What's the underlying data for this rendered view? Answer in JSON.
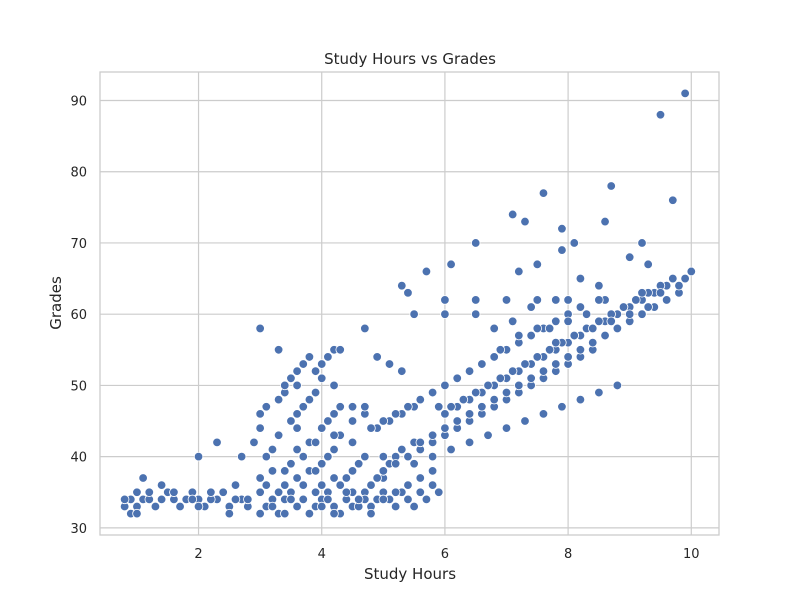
{
  "chart_data": {
    "type": "scatter",
    "title": "Study Hours vs Grades",
    "xlabel": "Study Hours",
    "ylabel": "Grades",
    "xlim": [
      0.4,
      10.45
    ],
    "ylim": [
      29,
      94
    ],
    "x_ticks": [
      2,
      4,
      6,
      8,
      10
    ],
    "y_ticks": [
      30,
      40,
      50,
      60,
      70,
      80,
      90
    ],
    "grid": true,
    "marker_color": "#4c72b0",
    "points": {
      "x": [
        0.8,
        0.9,
        1.0,
        1.1,
        1.2,
        1.3,
        1.4,
        1.5,
        1.6,
        1.7,
        1.8,
        1.9,
        2.0,
        2.1,
        2.2,
        2.3,
        2.4,
        2.5,
        2.6,
        2.7,
        0.9,
        1.0,
        1.2,
        1.4,
        1.6,
        1.8,
        2.0,
        2.2,
        2.4,
        2.6,
        2.8,
        1.1,
        1.4,
        2.0,
        2.3,
        2.6,
        0.8,
        1.0,
        1.3,
        1.6,
        1.9,
        2.2,
        2.5,
        2.8,
        2.8,
        3.0,
        3.1,
        3.2,
        3.3,
        3.4,
        3.5,
        3.6,
        3.7,
        3.8,
        3.9,
        4.0,
        4.1,
        4.2,
        4.3,
        4.4,
        4.5,
        4.6,
        4.7,
        4.8,
        4.9,
        5.0,
        5.1,
        5.2,
        5.3,
        5.4,
        5.5,
        5.6,
        5.7,
        5.8,
        5.9,
        3.0,
        3.2,
        3.4,
        3.6,
        3.8,
        4.0,
        4.2,
        4.4,
        4.6,
        4.8,
        5.0,
        5.2,
        5.4,
        5.6,
        5.8,
        3.1,
        3.3,
        3.5,
        3.7,
        3.9,
        4.1,
        4.3,
        4.5,
        4.7,
        3.0,
        3.2,
        3.4,
        3.6,
        3.8,
        4.0,
        4.2,
        4.4,
        4.6,
        4.8,
        5.0,
        2.7,
        2.9,
        3.0,
        3.1,
        3.2,
        3.3,
        3.4,
        3.5,
        3.6,
        3.7,
        3.8,
        3.9,
        4.0,
        4.1,
        4.2,
        4.3,
        4.4,
        4.5,
        4.6,
        4.7,
        4.8,
        4.9,
        5.0,
        5.1,
        5.2,
        5.3,
        5.4,
        3.0,
        3.1,
        3.3,
        3.4,
        3.5,
        3.6,
        3.7,
        3.8,
        3.9,
        4.0,
        4.1,
        4.2,
        4.3,
        4.5,
        4.7,
        4.9,
        5.1,
        5.3,
        5.5,
        3.4,
        3.5,
        3.6,
        3.7,
        3.8,
        3.9,
        4.0,
        4.1,
        5.0,
        5.3,
        5.5,
        5.8,
        6.0,
        6.2,
        6.4,
        5.9,
        6.3,
        6.6,
        3.0,
        3.3,
        3.6,
        3.9,
        4.0,
        4.2,
        4.7,
        4.9,
        5.1,
        5.3,
        5.4,
        5.5,
        3.6,
        3.9,
        4.2,
        4.5,
        4.8,
        5.0,
        5.2,
        5.4,
        5.6,
        5.8,
        6.0,
        6.2,
        6.4,
        6.6,
        6.8,
        7.0,
        7.2,
        7.4,
        7.6,
        7.8,
        8.0,
        8.2,
        5.0,
        5.2,
        5.4,
        5.6,
        5.8,
        6.0,
        6.2,
        6.4,
        6.6,
        6.8,
        7.0,
        7.2,
        7.4,
        7.6,
        7.8,
        8.0,
        8.2,
        8.4,
        5.5,
        5.8,
        6.1,
        6.4,
        6.7,
        7.0,
        7.3,
        7.6,
        7.9,
        8.2,
        8.5,
        8.8,
        5.6,
        5.8,
        6.0,
        6.2,
        6.4,
        6.6,
        6.8,
        7.0,
        7.2,
        7.4,
        7.6,
        7.8,
        8.0,
        8.2,
        8.4,
        8.6,
        8.8,
        9.0,
        9.2,
        9.4,
        9.6,
        9.8,
        6.0,
        6.2,
        6.4,
        6.6,
        6.8,
        7.0,
        7.2,
        7.4,
        7.6,
        7.8,
        8.0,
        8.2,
        8.4,
        8.6,
        8.8,
        9.0,
        9.2,
        9.4,
        9.6,
        9.8,
        6.1,
        6.3,
        6.5,
        6.7,
        6.9,
        7.1,
        7.3,
        7.5,
        7.7,
        7.9,
        8.1,
        8.3,
        8.5,
        8.7,
        8.9,
        9.1,
        9.3,
        9.5,
        9.7,
        9.9,
        10.0,
        6.6,
        6.9,
        7.2,
        7.5,
        7.8,
        8.1,
        8.4,
        8.7,
        9.0,
        9.3,
        9.6,
        6.5,
        6.8,
        7.1,
        7.4,
        7.7,
        8.0,
        8.3,
        8.6,
        8.9,
        9.2,
        9.5,
        6.0,
        6.5,
        7.0,
        7.5,
        8.0,
        8.5,
        5.3,
        5.7,
        6.0,
        6.1,
        6.5,
        7.1,
        7.3,
        7.6,
        7.9,
        8.1,
        8.7,
        9.0,
        9.2,
        9.5,
        9.7,
        9.9,
        7.8,
        7.9,
        8.6,
        7.2,
        7.5,
        8.2,
        8.5,
        9.3,
        4.2,
        4.3,
        4.5,
        4.7
      ],
      "y": [
        33,
        34,
        33,
        34,
        34,
        33,
        34,
        35,
        34,
        33,
        34,
        35,
        34,
        33,
        34,
        34,
        35,
        33,
        34,
        34,
        32,
        35,
        35,
        36,
        35,
        34,
        33,
        34,
        35,
        34,
        33,
        37,
        34,
        40,
        42,
        36,
        34,
        32,
        33,
        35,
        34,
        35,
        32,
        33,
        34,
        35,
        33,
        34,
        32,
        34,
        35,
        33,
        34,
        32,
        33,
        34,
        35,
        33,
        32,
        34,
        33,
        34,
        35,
        33,
        34,
        35,
        34,
        33,
        35,
        34,
        33,
        35,
        34,
        36,
        35,
        32,
        33,
        32,
        33,
        32,
        33,
        32,
        34,
        33,
        32,
        34,
        35,
        36,
        37,
        38,
        36,
        35,
        34,
        36,
        35,
        34,
        36,
        35,
        34,
        37,
        38,
        36,
        37,
        38,
        36,
        37,
        35,
        34,
        36,
        37,
        40,
        42,
        44,
        40,
        41,
        43,
        38,
        39,
        41,
        40,
        42,
        38,
        39,
        40,
        41,
        43,
        37,
        38,
        39,
        40,
        36,
        37,
        38,
        39,
        40,
        41,
        40,
        46,
        47,
        48,
        49,
        45,
        46,
        47,
        48,
        49,
        44,
        45,
        46,
        47,
        45,
        46,
        44,
        45,
        46,
        47,
        50,
        51,
        52,
        53,
        54,
        52,
        53,
        54,
        40,
        41,
        42,
        43,
        44,
        45,
        46,
        47,
        48,
        49,
        58,
        55,
        50,
        52,
        51,
        50,
        58,
        54,
        53,
        52,
        63,
        60,
        44,
        42,
        43,
        42,
        44,
        45,
        46,
        47,
        48,
        49,
        50,
        51,
        52,
        53,
        54,
        55,
        56,
        57,
        58,
        59,
        60,
        61,
        38,
        39,
        40,
        41,
        42,
        43,
        44,
        45,
        46,
        47,
        48,
        49,
        50,
        51,
        52,
        53,
        54,
        55,
        39,
        40,
        41,
        42,
        43,
        44,
        45,
        46,
        47,
        48,
        49,
        50,
        42,
        43,
        44,
        45,
        46,
        47,
        48,
        49,
        50,
        51,
        52,
        53,
        54,
        55,
        56,
        57,
        58,
        59,
        60,
        61,
        62,
        63,
        46,
        47,
        48,
        49,
        50,
        51,
        52,
        53,
        54,
        55,
        56,
        57,
        58,
        59,
        60,
        61,
        62,
        63,
        64,
        64,
        47,
        48,
        49,
        50,
        51,
        52,
        53,
        54,
        55,
        56,
        57,
        58,
        59,
        60,
        61,
        62,
        63,
        64,
        65,
        65,
        66,
        53,
        55,
        57,
        58,
        56,
        57,
        58,
        59,
        60,
        61,
        62,
        60,
        58,
        59,
        61,
        58,
        59,
        60,
        62,
        61,
        63,
        63,
        62,
        62,
        62,
        62,
        62,
        62,
        64,
        66,
        60,
        67,
        70,
        74,
        73,
        77,
        72,
        70,
        78,
        68,
        70,
        88,
        76,
        91,
        62,
        69,
        73,
        66,
        67,
        65,
        64,
        67,
        55,
        55,
        47,
        47
      ]
    }
  }
}
